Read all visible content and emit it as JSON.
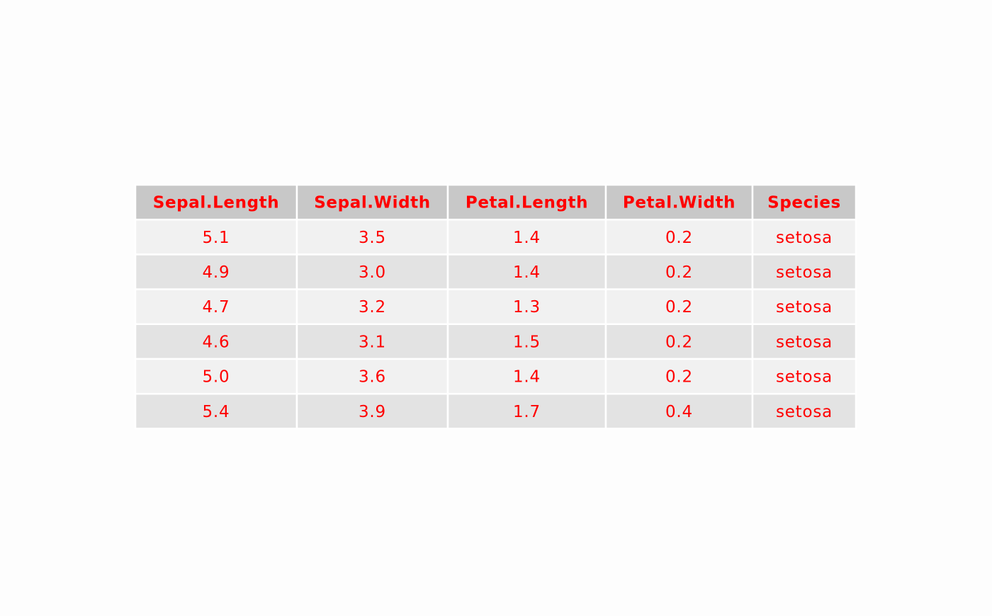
{
  "chart_data": {
    "type": "table",
    "title": "",
    "columns": [
      "Sepal.Length",
      "Sepal.Width",
      "Petal.Length",
      "Petal.Width",
      "Species"
    ],
    "rows": [
      [
        "5.1",
        "3.5",
        "1.4",
        "0.2",
        "setosa"
      ],
      [
        "4.9",
        "3.0",
        "1.4",
        "0.2",
        "setosa"
      ],
      [
        "4.7",
        "3.2",
        "1.3",
        "0.2",
        "setosa"
      ],
      [
        "4.6",
        "3.1",
        "1.5",
        "0.2",
        "setosa"
      ],
      [
        "5.0",
        "3.6",
        "1.4",
        "0.2",
        "setosa"
      ],
      [
        "5.4",
        "3.9",
        "1.7",
        "0.4",
        "setosa"
      ]
    ],
    "colors": {
      "text": "#ff0000",
      "header_fill": "#c8c8c8",
      "row_fill_odd": "#f1f1f1",
      "row_fill_even": "#e3e3e3",
      "cell_border": "#ffffff",
      "background": "#fdfdfd"
    }
  }
}
